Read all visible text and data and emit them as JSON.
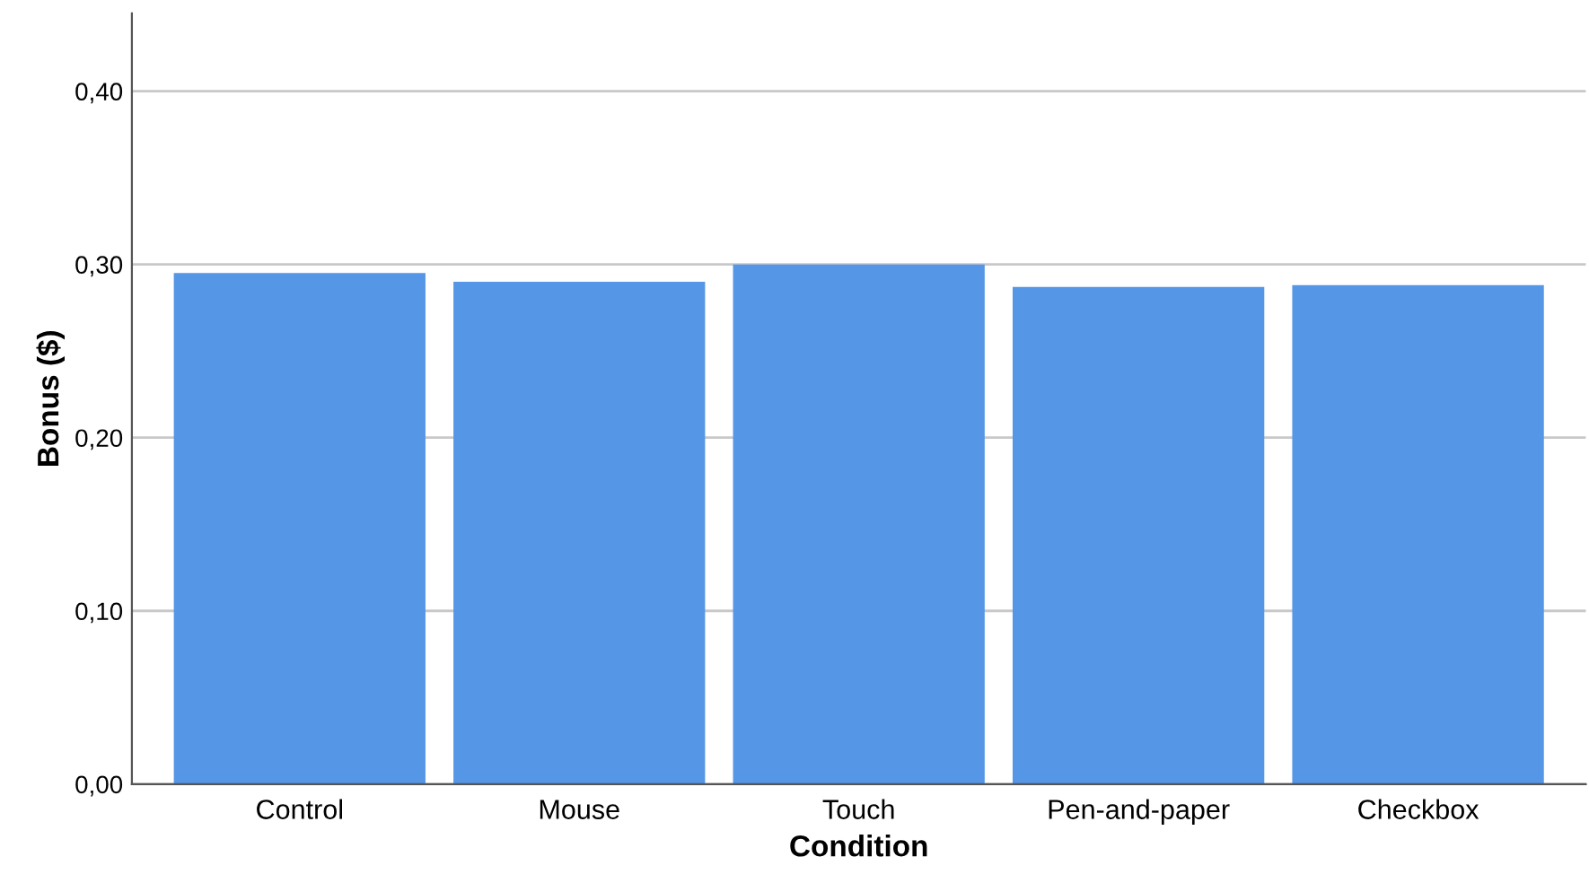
{
  "chart_data": {
    "type": "bar",
    "xlabel": "Condition",
    "ylabel": "Bonus ($)",
    "categories": [
      "Control",
      "Mouse",
      "Touch",
      "Pen-and-paper",
      "Checkbox"
    ],
    "values": [
      0.295,
      0.29,
      0.3,
      0.287,
      0.288
    ],
    "color": "#5596e6",
    "ylim": [
      0,
      0.445
    ],
    "yticks": [
      {
        "value": 0,
        "label": "0,00"
      },
      {
        "value": 0.1,
        "label": "0,10"
      },
      {
        "value": 0.2,
        "label": "0,20"
      },
      {
        "value": 0.3,
        "label": "0,30"
      },
      {
        "value": 0.4,
        "label": "0,40"
      }
    ],
    "grid": "y",
    "legend": false
  }
}
